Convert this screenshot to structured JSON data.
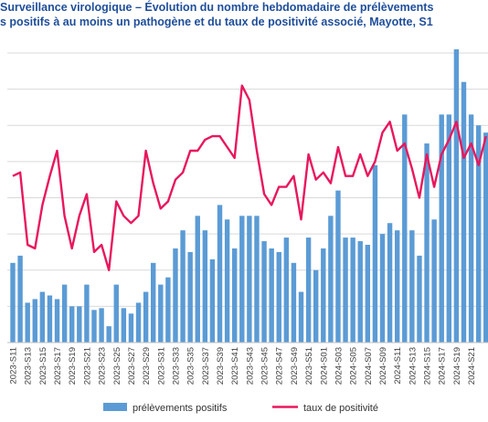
{
  "title_line1": "Surveillance virologique – Évolution du nombre hebdomadaire de prélèvements",
  "title_line2": "s positifs à au moins un pathogène et du taux de positivité associé, Mayotte, S1",
  "chart_data": {
    "type": "bar",
    "categories": [
      "2023-S11",
      "2023-S12",
      "2023-S13",
      "2023-S14",
      "2023-S15",
      "2023-S16",
      "2023-S17",
      "2023-S18",
      "2023-S19",
      "2023-S20",
      "2023-S21",
      "2023-S22",
      "2023-S23",
      "2023-S24",
      "2023-S25",
      "2023-S26",
      "2023-S27",
      "2023-S28",
      "2023-S29",
      "2023-S30",
      "2023-S31",
      "2023-S32",
      "2023-S33",
      "2023-S34",
      "2023-S35",
      "2023-S36",
      "2023-S37",
      "2023-S38",
      "2023-S39",
      "2023-S40",
      "2023-S41",
      "2023-S42",
      "2023-S43",
      "2023-S44",
      "2023-S45",
      "2023-S46",
      "2023-S47",
      "2023-S48",
      "2023-S49",
      "2023-S50",
      "2023-S51",
      "2023-S52",
      "2024-S01",
      "2024-S02",
      "2024-S03",
      "2024-S04",
      "2024-S05",
      "2024-S06",
      "2024-S07",
      "2024-S08",
      "2024-S09",
      "2024-S10",
      "2024-S11",
      "2024-S12",
      "2024-S13",
      "2024-S14",
      "2024-S15",
      "2024-S16",
      "2024-S17",
      "2024-S18",
      "2024-S19",
      "2024-S20",
      "2024-S21",
      "2024-S22",
      "2024-S23"
    ],
    "tick_labels": [
      "2023-S11",
      "2023-S13",
      "2023-S15",
      "2023-S17",
      "2023-S19",
      "2023-S21",
      "2023-S23",
      "2023-S25",
      "2023-S27",
      "2023-S29",
      "2023-S31",
      "2023-S33",
      "2023-S35",
      "2023-S37",
      "2023-S39",
      "2023-S41",
      "2023-S43",
      "2023-S45",
      "2023-S47",
      "2023-S49",
      "2023-S51",
      "2024-S01",
      "2024-S03",
      "2024-S05",
      "2024-S07",
      "2024-S09",
      "2024-S11",
      "2024-S13",
      "2024-S15",
      "2024-S17",
      "2024-S19",
      "2024-S21"
    ],
    "ylim": [
      0,
      8
    ],
    "y2lim": [
      0,
      80
    ],
    "grid": true,
    "legend_position": "bottom",
    "series": [
      {
        "name": "prélèvements positifs",
        "type": "bar",
        "color": "#5b9bd5",
        "values": [
          2.2,
          2.4,
          1.1,
          1.2,
          1.4,
          1.3,
          1.2,
          1.6,
          1.0,
          1.0,
          1.6,
          0.9,
          0.95,
          0.45,
          1.6,
          0.95,
          0.8,
          1.1,
          1.4,
          2.2,
          1.6,
          1.8,
          2.6,
          3.1,
          2.5,
          3.5,
          3.1,
          2.3,
          3.8,
          3.4,
          2.6,
          3.5,
          3.5,
          3.5,
          2.8,
          2.6,
          2.5,
          2.9,
          2.2,
          1.4,
          2.9,
          2.0,
          2.6,
          3.5,
          4.2,
          2.9,
          2.9,
          2.8,
          2.7,
          4.9,
          3.0,
          3.3,
          3.1,
          6.3,
          3.1,
          2.4,
          5.5,
          3.4,
          6.3,
          6.3,
          8.1,
          7.2,
          6.3,
          6.0,
          5.8
        ]
      },
      {
        "name": "taux de positivité",
        "type": "line",
        "color": "#e8175d",
        "values": [
          46,
          47,
          27,
          26,
          38,
          46,
          53,
          35,
          26,
          35,
          41,
          25,
          27,
          20,
          39,
          35,
          33,
          35,
          53,
          44,
          37,
          39,
          45,
          47,
          53,
          53,
          56,
          57,
          57,
          54,
          51,
          71,
          67,
          53,
          41,
          38,
          43,
          43,
          46,
          34,
          52,
          45,
          47,
          44,
          54,
          46,
          46,
          52,
          46,
          50,
          58,
          61,
          53,
          55,
          48,
          40,
          52,
          43,
          52,
          56,
          61,
          51,
          55,
          49,
          57
        ]
      }
    ]
  }
}
